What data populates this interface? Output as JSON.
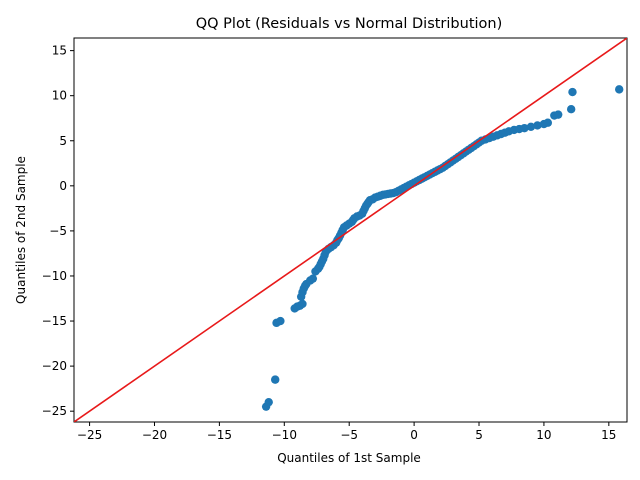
{
  "chart_data": {
    "type": "scatter",
    "title": "QQ Plot (Residuals vs Normal Distribution)",
    "xlabel": "Quantiles of 1st Sample",
    "ylabel": "Quantiles of 2nd Sample",
    "xlim": [
      -26.2,
      16.4
    ],
    "ylim": [
      -26.2,
      16.4
    ],
    "xticks": [
      -25,
      -20,
      -15,
      -10,
      -5,
      0,
      5,
      10,
      15
    ],
    "yticks": [
      -25,
      -20,
      -15,
      -10,
      -5,
      0,
      5,
      10,
      15
    ],
    "grid": false,
    "marker_color": "#1f77b4",
    "reference_line": {
      "from": [
        -26.2,
        -26.2
      ],
      "to": [
        16.4,
        16.4
      ],
      "color": "#e8191a"
    },
    "points": [
      [
        -11.4,
        -24.5
      ],
      [
        -11.2,
        -24.0
      ],
      [
        -10.7,
        -21.5
      ],
      [
        -10.6,
        -15.2
      ],
      [
        -10.3,
        -15.0
      ],
      [
        -9.2,
        -13.6
      ],
      [
        -9.0,
        -13.4
      ],
      [
        -8.8,
        -13.3
      ],
      [
        -8.6,
        -13.1
      ],
      [
        -8.7,
        -12.3
      ],
      [
        -8.6,
        -11.8
      ],
      [
        -8.5,
        -11.4
      ],
      [
        -8.4,
        -11.1
      ],
      [
        -8.3,
        -10.9
      ],
      [
        -8.0,
        -10.5
      ],
      [
        -7.8,
        -10.3
      ],
      [
        -7.6,
        -9.5
      ],
      [
        -7.4,
        -9.2
      ],
      [
        -7.3,
        -9.0
      ],
      [
        -7.2,
        -8.7
      ],
      [
        -7.1,
        -8.4
      ],
      [
        -7.0,
        -8.1
      ],
      [
        -6.9,
        -7.7
      ],
      [
        -6.8,
        -7.3
      ],
      [
        -6.6,
        -7.0
      ],
      [
        -6.4,
        -6.8
      ],
      [
        -6.2,
        -6.6
      ],
      [
        -6.0,
        -6.3
      ],
      [
        -5.9,
        -6.0
      ],
      [
        -5.8,
        -5.8
      ],
      [
        -5.7,
        -5.5
      ],
      [
        -5.6,
        -5.2
      ],
      [
        -5.5,
        -4.9
      ],
      [
        -5.4,
        -4.6
      ],
      [
        -5.2,
        -4.4
      ],
      [
        -5.0,
        -4.2
      ],
      [
        -4.8,
        -4.0
      ],
      [
        -4.7,
        -3.8
      ],
      [
        -4.6,
        -3.6
      ],
      [
        -4.4,
        -3.4
      ],
      [
        -4.2,
        -3.3
      ],
      [
        -4.0,
        -3.1
      ],
      [
        -3.9,
        -2.8
      ],
      [
        -3.8,
        -2.5
      ],
      [
        -3.7,
        -2.2
      ],
      [
        -3.6,
        -2.0
      ],
      [
        -3.5,
        -1.8
      ],
      [
        -3.4,
        -1.6
      ],
      [
        -3.2,
        -1.5
      ],
      [
        -3.0,
        -1.3
      ],
      [
        -2.8,
        -1.2
      ],
      [
        -2.6,
        -1.1
      ],
      [
        -2.4,
        -1.0
      ],
      [
        -2.2,
        -0.95
      ],
      [
        -2.0,
        -0.9
      ],
      [
        -1.8,
        -0.85
      ],
      [
        -1.6,
        -0.8
      ],
      [
        -1.4,
        -0.7
      ],
      [
        -1.2,
        -0.55
      ],
      [
        -1.0,
        -0.4
      ],
      [
        -0.8,
        -0.25
      ],
      [
        -0.6,
        -0.1
      ],
      [
        -0.4,
        0.05
      ],
      [
        -0.2,
        0.2
      ],
      [
        0.0,
        0.35
      ],
      [
        0.2,
        0.5
      ],
      [
        0.4,
        0.65
      ],
      [
        0.6,
        0.8
      ],
      [
        0.8,
        0.95
      ],
      [
        1.0,
        1.1
      ],
      [
        1.2,
        1.25
      ],
      [
        1.4,
        1.4
      ],
      [
        1.6,
        1.55
      ],
      [
        1.8,
        1.7
      ],
      [
        2.0,
        1.85
      ],
      [
        2.2,
        2.0
      ],
      [
        2.4,
        2.2
      ],
      [
        2.6,
        2.4
      ],
      [
        2.8,
        2.6
      ],
      [
        3.0,
        2.8
      ],
      [
        3.2,
        3.0
      ],
      [
        3.4,
        3.2
      ],
      [
        3.6,
        3.4
      ],
      [
        3.8,
        3.6
      ],
      [
        4.0,
        3.8
      ],
      [
        4.2,
        4.0
      ],
      [
        4.4,
        4.2
      ],
      [
        4.6,
        4.4
      ],
      [
        4.8,
        4.6
      ],
      [
        5.0,
        4.8
      ],
      [
        5.2,
        5.0
      ],
      [
        5.5,
        5.15
      ],
      [
        5.8,
        5.3
      ],
      [
        6.1,
        5.45
      ],
      [
        6.4,
        5.6
      ],
      [
        6.7,
        5.75
      ],
      [
        7.0,
        5.9
      ],
      [
        7.3,
        6.05
      ],
      [
        7.7,
        6.2
      ],
      [
        8.1,
        6.3
      ],
      [
        8.5,
        6.4
      ],
      [
        9.0,
        6.55
      ],
      [
        9.5,
        6.7
      ],
      [
        10.0,
        6.85
      ],
      [
        10.3,
        7.0
      ],
      [
        10.8,
        7.8
      ],
      [
        11.1,
        7.9
      ],
      [
        12.1,
        8.5
      ],
      [
        12.2,
        10.4
      ],
      [
        15.8,
        10.7
      ]
    ]
  }
}
